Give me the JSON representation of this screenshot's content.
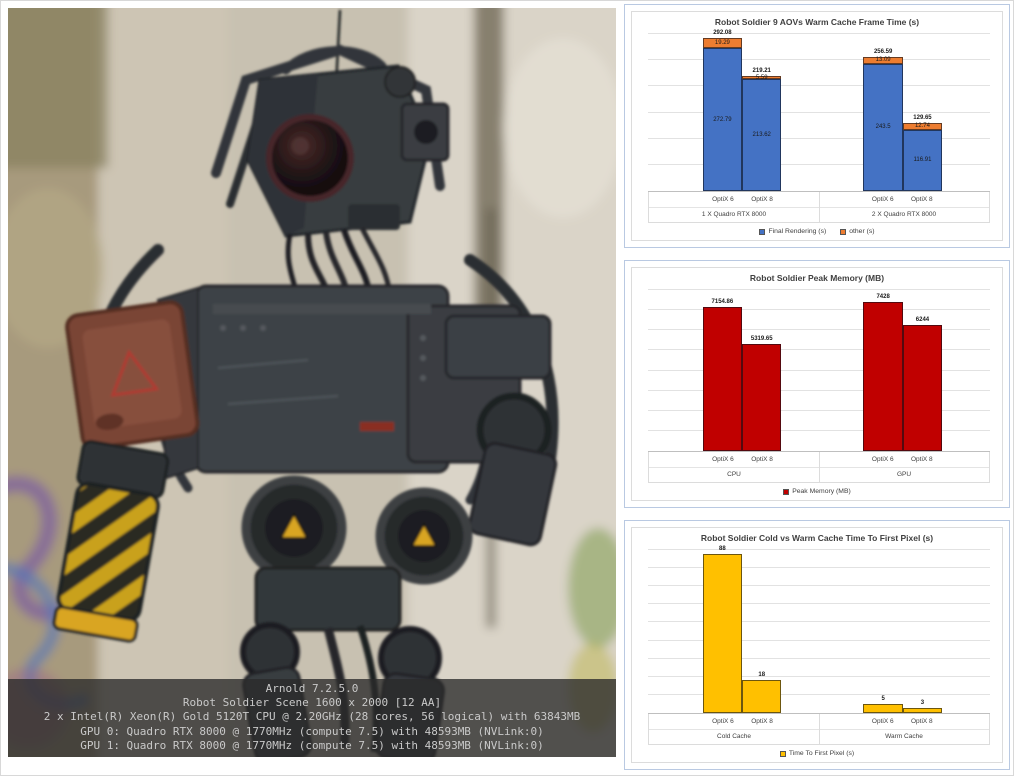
{
  "page": {
    "background": "#ffffff",
    "card_border_color": "#b9c9e2"
  },
  "image_panel": {
    "description": "robot-soldier-render",
    "overlay_lines": [
      "Arnold 7.2.5.0",
      "Robot Soldier Scene 1600 x 2000 [12 AA]",
      "2 x Intel(R) Xeon(R) Gold 5120T CPU @ 2.20GHz (28 cores, 56 logical) with 63843MB",
      "GPU 0: Quadro RTX 8000 @ 1770MHz (compute 7.5) with 48593MB (NVLink:0)",
      "GPU 1: Quadro RTX 8000 @ 1770MHz (compute 7.5) with 48593MB (NVLink:0)"
    ]
  },
  "chart_data": [
    {
      "type": "bar",
      "stacked": true,
      "title": "Robot Soldier 9 AOVs Warm Cache Frame Time (s)",
      "categories": [
        "OptiX 6",
        "OptiX 8",
        "OptiX 6",
        "OptiX 8"
      ],
      "group_labels": [
        "1 X Quadro RTX 8000",
        "2 X Quadro RTX 8000"
      ],
      "series": [
        {
          "name": "Final Rendering (s)",
          "color": "#4472C4",
          "values": [
            272.79,
            213.62,
            243.5,
            116.91
          ],
          "value_labels": [
            "272.79",
            "213.62",
            "243.5",
            "116.91"
          ]
        },
        {
          "name": "other (s)",
          "color": "#ED7D31",
          "values": [
            19.29,
            5.59,
            13.09,
            12.74
          ],
          "value_labels": [
            "19.29",
            "5.59",
            "13.09",
            "12.74"
          ]
        }
      ],
      "totals": [
        "292.08",
        "219.21",
        "256.59",
        "129.65"
      ],
      "xlabel": "",
      "ylabel": "",
      "ylim": [
        0,
        300
      ],
      "ystep": 50,
      "grid": true,
      "legend_position": "bottom"
    },
    {
      "type": "bar",
      "stacked": false,
      "title": "Robot Soldier Peak Memory (MB)",
      "categories": [
        "OptiX 6",
        "OptiX 8",
        "OptiX 6",
        "OptiX 8"
      ],
      "group_labels": [
        "CPU",
        "GPU"
      ],
      "series": [
        {
          "name": "Peak Memory (MB)",
          "color": "#C00000",
          "values": [
            7154.86,
            5319.65,
            7428,
            6244
          ],
          "value_labels": [
            "7154.86",
            "5319.65",
            "7428",
            "6244"
          ]
        }
      ],
      "totals": [
        "7154.86",
        "5319.65",
        "7428",
        "6244"
      ],
      "xlabel": "",
      "ylabel": "",
      "ylim": [
        0,
        8000
      ],
      "ystep": 1000,
      "grid": true,
      "legend_position": "bottom"
    },
    {
      "type": "bar",
      "stacked": false,
      "title": "Robot Soldier Cold vs Warm Cache Time To First Pixel (s)",
      "categories": [
        "OptiX 6",
        "OptiX 8",
        "OptiX 6",
        "OptiX 8"
      ],
      "group_labels": [
        "Cold Cache",
        "Warm Cache"
      ],
      "series": [
        {
          "name": "Time To First Pixel (s)",
          "color": "#FFC000",
          "values": [
            88,
            18,
            5,
            3
          ],
          "value_labels": [
            "88",
            "18",
            "5",
            "3"
          ]
        }
      ],
      "totals": [
        "88",
        "18",
        "5",
        "3"
      ],
      "xlabel": "",
      "ylabel": "",
      "ylim": [
        0,
        90
      ],
      "ystep": 10,
      "grid": true,
      "legend_position": "bottom"
    }
  ]
}
